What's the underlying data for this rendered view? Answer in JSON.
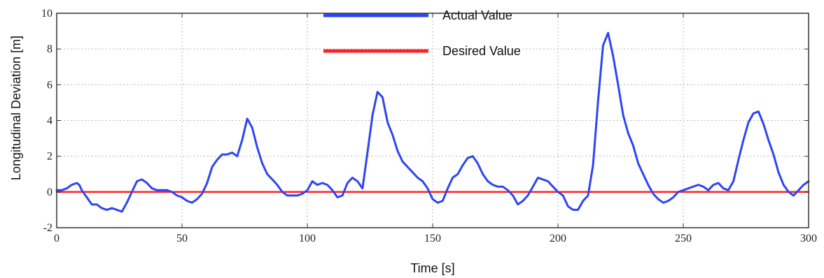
{
  "chart_data": {
    "type": "line",
    "title": "",
    "xlabel": "Time [s]",
    "ylabel": "Longitudinal Deviation [m]",
    "xlim": [
      0,
      300
    ],
    "ylim": [
      -2,
      10
    ],
    "x_ticks": [
      0,
      50,
      100,
      150,
      200,
      250,
      300
    ],
    "y_ticks": [
      -2,
      0,
      2,
      4,
      6,
      8,
      10
    ],
    "grid": true,
    "legend_position": "top-center",
    "series": [
      {
        "name": "Actual Value",
        "color": "#2e46f0",
        "x": [
          0,
          2,
          4,
          6,
          8,
          9,
          10,
          12,
          14,
          16,
          18,
          20,
          22,
          24,
          26,
          28,
          30,
          32,
          34,
          36,
          38,
          40,
          42,
          44,
          46,
          48,
          50,
          52,
          54,
          56,
          58,
          60,
          62,
          64,
          66,
          68,
          70,
          72,
          74,
          76,
          78,
          80,
          82,
          84,
          86,
          88,
          90,
          92,
          94,
          96,
          98,
          100,
          102,
          104,
          106,
          108,
          110,
          112,
          114,
          116,
          118,
          120,
          122,
          124,
          126,
          128,
          130,
          132,
          134,
          136,
          138,
          140,
          142,
          144,
          146,
          148,
          150,
          152,
          154,
          156,
          158,
          160,
          162,
          164,
          166,
          168,
          170,
          172,
          174,
          176,
          178,
          180,
          182,
          184,
          186,
          188,
          190,
          192,
          194,
          196,
          198,
          200,
          202,
          204,
          206,
          208,
          210,
          212,
          214,
          216,
          218,
          220,
          222,
          224,
          226,
          228,
          230,
          232,
          234,
          236,
          238,
          240,
          242,
          244,
          246,
          248,
          250,
          252,
          254,
          256,
          258,
          260,
          262,
          264,
          266,
          268,
          270,
          272,
          274,
          276,
          278,
          280,
          282,
          284,
          286,
          288,
          290,
          292,
          294,
          296,
          298,
          300
        ],
        "y": [
          0.1,
          0.1,
          0.2,
          0.4,
          0.5,
          0.4,
          0.1,
          -0.3,
          -0.7,
          -0.7,
          -0.9,
          -1.0,
          -0.9,
          -1.0,
          -1.1,
          -0.6,
          0.0,
          0.6,
          0.7,
          0.5,
          0.2,
          0.1,
          0.1,
          0.1,
          0.0,
          -0.2,
          -0.3,
          -0.5,
          -0.6,
          -0.4,
          -0.1,
          0.5,
          1.4,
          1.8,
          2.1,
          2.1,
          2.2,
          2.0,
          2.9,
          4.1,
          3.6,
          2.5,
          1.6,
          1.0,
          0.7,
          0.4,
          0.0,
          -0.2,
          -0.2,
          -0.2,
          -0.1,
          0.1,
          0.6,
          0.4,
          0.5,
          0.4,
          0.1,
          -0.3,
          -0.2,
          0.5,
          0.8,
          0.6,
          0.2,
          2.2,
          4.3,
          5.6,
          5.3,
          3.9,
          3.2,
          2.3,
          1.7,
          1.4,
          1.1,
          0.8,
          0.6,
          0.2,
          -0.4,
          -0.6,
          -0.5,
          0.2,
          0.8,
          1.0,
          1.5,
          1.9,
          2.0,
          1.6,
          1.0,
          0.6,
          0.4,
          0.3,
          0.3,
          0.1,
          -0.2,
          -0.7,
          -0.5,
          -0.2,
          0.3,
          0.8,
          0.7,
          0.6,
          0.3,
          0.0,
          -0.2,
          -0.8,
          -1.0,
          -1.0,
          -0.5,
          -0.2,
          1.5,
          5.1,
          8.2,
          8.9,
          7.6,
          6.0,
          4.3,
          3.3,
          2.6,
          1.6,
          1.0,
          0.4,
          -0.1,
          -0.4,
          -0.6,
          -0.5,
          -0.3,
          0.0,
          0.1,
          0.2,
          0.3,
          0.4,
          0.3,
          0.1,
          0.4,
          0.5,
          0.2,
          0.1,
          0.6,
          1.8,
          2.9,
          3.9,
          4.4,
          4.5,
          3.8,
          2.9,
          2.1,
          1.1,
          0.4,
          0.0,
          -0.2,
          0.1,
          0.4,
          0.6
        ]
      },
      {
        "name": "Desired Value",
        "color": "#ff2222",
        "x": [
          0,
          300
        ],
        "y": [
          0,
          0
        ]
      }
    ]
  }
}
